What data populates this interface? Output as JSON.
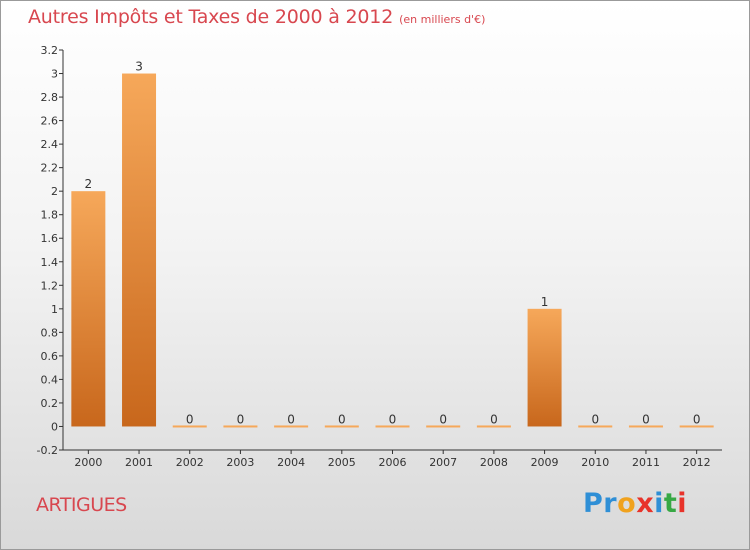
{
  "header": {
    "title": "Autres Impôts et Taxes de 2000 à 2012",
    "subtitle": "(en milliers d'€)"
  },
  "footer": {
    "location": "ARTIGUES",
    "logo_letters": [
      "P",
      "r",
      "o",
      "x",
      "i",
      "t",
      "i"
    ]
  },
  "colors": {
    "title": "#d8474f",
    "bar_light": "#f6a85a",
    "bar_dark": "#c8671c",
    "logo_letters": [
      "#2f8fd6",
      "#2f8fd6",
      "#f0a21e",
      "#e8332a",
      "#2f8fd6",
      "#37a844",
      "#e8332a"
    ]
  },
  "chart_data": {
    "type": "bar",
    "categories": [
      "2000",
      "2001",
      "2002",
      "2003",
      "2004",
      "2005",
      "2006",
      "2007",
      "2008",
      "2009",
      "2010",
      "2011",
      "2012"
    ],
    "values": [
      2,
      3,
      0,
      0,
      0,
      0,
      0,
      0,
      0,
      1,
      0,
      0,
      0
    ],
    "data_labels": [
      "2",
      "3",
      "0",
      "0",
      "0",
      "0",
      "0",
      "0",
      "0",
      "1",
      "0",
      "0",
      "0"
    ],
    "y_ticks": [
      "-0.2",
      "0",
      "0.2",
      "0.4",
      "0.6",
      "0.8",
      "1",
      "1.2",
      "1.4",
      "1.6",
      "1.8",
      "2",
      "2.2",
      "2.4",
      "2.6",
      "2.8",
      "3",
      "3.2"
    ],
    "ylim": [
      -0.2,
      3.2
    ],
    "grid": false,
    "legend": "none"
  }
}
